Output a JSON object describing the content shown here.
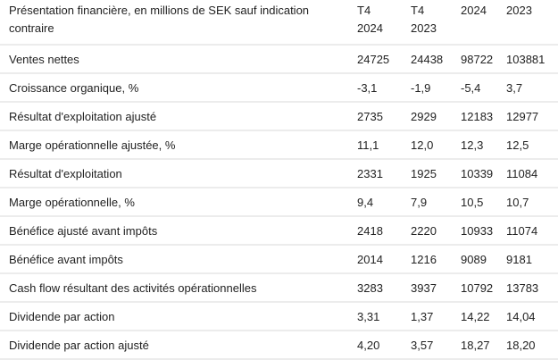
{
  "table": {
    "header": {
      "label": "Présentation financière, en millions de SEK sauf indication contraire",
      "columns": [
        {
          "line1": "T4",
          "line2": "2024"
        },
        {
          "line1": "T4",
          "line2": "2023"
        },
        {
          "line1": "2024",
          "line2": ""
        },
        {
          "line1": "2023",
          "line2": ""
        }
      ]
    },
    "rows": [
      {
        "label": "Ventes nettes",
        "values": [
          "24725",
          "24438",
          "98722",
          "103881"
        ]
      },
      {
        "label": "Croissance organique, %",
        "values": [
          "-3,1",
          "-1,9",
          "-5,4",
          "3,7"
        ]
      },
      {
        "label": "Résultat d'exploitation ajusté",
        "values": [
          "2735",
          "2929",
          "12183",
          "12977"
        ]
      },
      {
        "label": "Marge opérationnelle ajustée, %",
        "values": [
          "11,1",
          "12,0",
          "12,3",
          "12,5"
        ]
      },
      {
        "label": "Résultat d'exploitation",
        "values": [
          "2331",
          "1925",
          "10339",
          "11084"
        ]
      },
      {
        "label": "Marge opérationnelle, %",
        "values": [
          "9,4",
          "7,9",
          "10,5",
          "10,7"
        ]
      },
      {
        "label": "Bénéfice ajusté avant impôts",
        "values": [
          "2418",
          "2220",
          "10933",
          "11074"
        ]
      },
      {
        "label": "Bénéfice avant impôts",
        "values": [
          "2014",
          "1216",
          "9089",
          "9181"
        ]
      },
      {
        "label": "Cash flow résultant des activités opérationnelles",
        "values": [
          "3283",
          "3937",
          "10792",
          "13783"
        ]
      },
      {
        "label": "Dividende par action",
        "values": [
          "3,31",
          "1,37",
          "14,22",
          "14,04"
        ]
      },
      {
        "label": "Dividende par action ajusté",
        "values": [
          "4,20",
          "3,57",
          "18,27",
          "18,20"
        ]
      }
    ]
  }
}
